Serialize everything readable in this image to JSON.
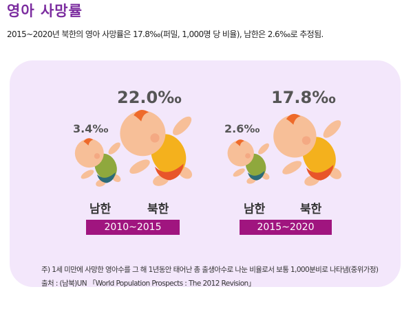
{
  "header": {
    "title": "영아 사망률",
    "subtitle": "2015~2020년 북한의 영아 사망률은 17.8‰(퍼밀, 1,000명 당 비율), 남한은 2.6‰로 추정됨."
  },
  "colors": {
    "title": "#7b2c9f",
    "panel_bg": "#f3e7fb",
    "period_bg": "#a0157f",
    "skin": "#f7bf98",
    "hair": "#ee6a2a",
    "diaper_north": "#f4b11d",
    "diaper_north_bottom": "#e8552a",
    "diaper_south": "#8fa83d",
    "diaper_south_bottom": "#2d6b78"
  },
  "chart_data": {
    "type": "pictogram",
    "unit": "‰",
    "series": [
      {
        "name": "남한",
        "values": [
          3.4,
          2.6
        ]
      },
      {
        "name": "북한",
        "values": [
          22.0,
          17.8
        ]
      }
    ],
    "categories": [
      "2010~2015",
      "2015~2020"
    ],
    "labels": {
      "south": {
        "period1": "3.4‰",
        "period2": "2.6‰"
      },
      "north": {
        "period1": "22.0‰",
        "period2": "17.8‰"
      }
    },
    "groups": [
      {
        "period": "2010~2015",
        "south_label": "남한",
        "north_label": "북한"
      },
      {
        "period": "2015~2020",
        "south_label": "남한",
        "north_label": "북한"
      }
    ]
  },
  "notes": {
    "note": "주) 1세 미만에 사망한 영아수를 그 해 1년동안 태어난 총 출생아수로 나눈 비율로서 보통 1,000분비로 나타냄(중위가정)",
    "source": "출처 : (남북)UN 「World Population Prospects : The 2012 Revision」"
  }
}
